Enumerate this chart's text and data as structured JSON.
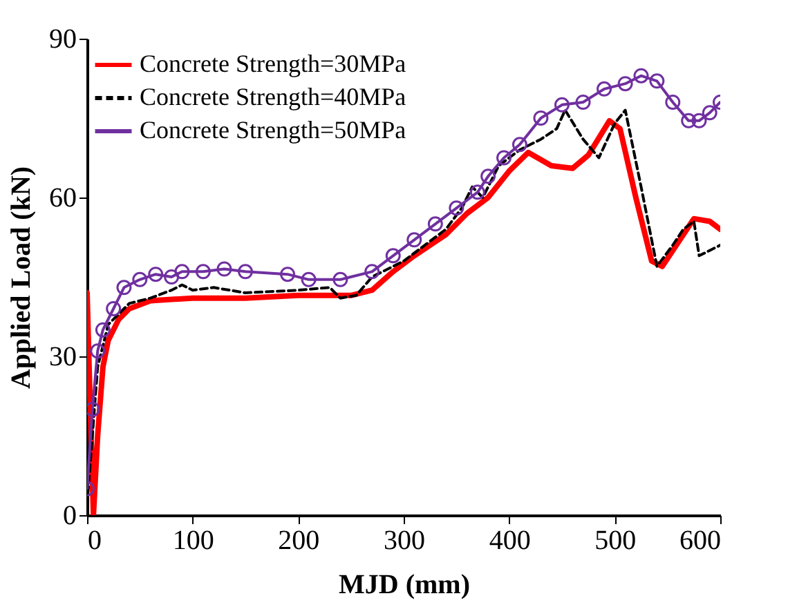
{
  "chart_data": {
    "type": "line",
    "xlabel": "MJD (mm)",
    "ylabel": "Applied Load (kN)",
    "xlim": [
      0,
      600
    ],
    "ylim": [
      0,
      90
    ],
    "xticks": [
      0,
      100,
      200,
      300,
      400,
      500,
      600
    ],
    "yticks": [
      0,
      30,
      60,
      90
    ],
    "grid": false,
    "legend": "top left",
    "series": [
      {
        "name": "Concrete Strength=30MPa",
        "color": "#ff0000",
        "line_style": "solid",
        "marker": "none",
        "x": [
          0,
          3,
          6,
          10,
          15,
          20,
          30,
          40,
          60,
          100,
          150,
          200,
          250,
          270,
          290,
          310,
          340,
          360,
          380,
          400,
          418,
          440,
          460,
          475,
          495,
          505,
          520,
          535,
          545,
          555,
          575,
          590,
          600
        ],
        "values": [
          42,
          20,
          0,
          15,
          28,
          33,
          37,
          39,
          40.5,
          41,
          41,
          41.5,
          41.5,
          42.5,
          46,
          49,
          53,
          57,
          60,
          65,
          68.5,
          66,
          65.5,
          68,
          74.5,
          73,
          60,
          48,
          47,
          50,
          56,
          55.5,
          54
        ]
      },
      {
        "name": "Concrete Strength=40MPa",
        "color": "#000000",
        "line_style": "dashed",
        "marker": "none",
        "x": [
          0,
          5,
          10,
          20,
          40,
          60,
          80,
          90,
          100,
          120,
          150,
          200,
          230,
          240,
          255,
          270,
          300,
          340,
          355,
          365,
          375,
          390,
          410,
          430,
          445,
          453,
          470,
          485,
          500,
          510,
          525,
          540,
          555,
          565,
          575,
          580,
          590,
          600
        ],
        "values": [
          2,
          15,
          28,
          36,
          40,
          41,
          42.5,
          43.5,
          42.5,
          43,
          42,
          42.5,
          43,
          41,
          41.5,
          45,
          48,
          54,
          58,
          62,
          60,
          66,
          69,
          71,
          73,
          76.5,
          71,
          67.5,
          74,
          76.5,
          62,
          47,
          51,
          54,
          55.5,
          49,
          50,
          51
        ]
      },
      {
        "name": "Concrete Strength=50MPa",
        "color": "#7030a0",
        "line_style": "solid",
        "marker": "circle",
        "x": [
          0,
          5,
          10,
          15,
          25,
          35,
          50,
          65,
          80,
          90,
          110,
          130,
          150,
          190,
          210,
          240,
          270,
          290,
          310,
          330,
          350,
          370,
          380,
          395,
          410,
          430,
          450,
          470,
          490,
          510,
          525,
          540,
          555,
          570,
          580,
          590,
          600
        ],
        "values": [
          5,
          20,
          31,
          35,
          39,
          43,
          44.5,
          45.5,
          45,
          46,
          46,
          46.5,
          46,
          45.5,
          44.5,
          44.5,
          46,
          49,
          52,
          55,
          58,
          61,
          64,
          67.5,
          70,
          75,
          77.5,
          78,
          80.5,
          81.5,
          83,
          82,
          78,
          74.5,
          74.5,
          76,
          78
        ]
      }
    ]
  }
}
